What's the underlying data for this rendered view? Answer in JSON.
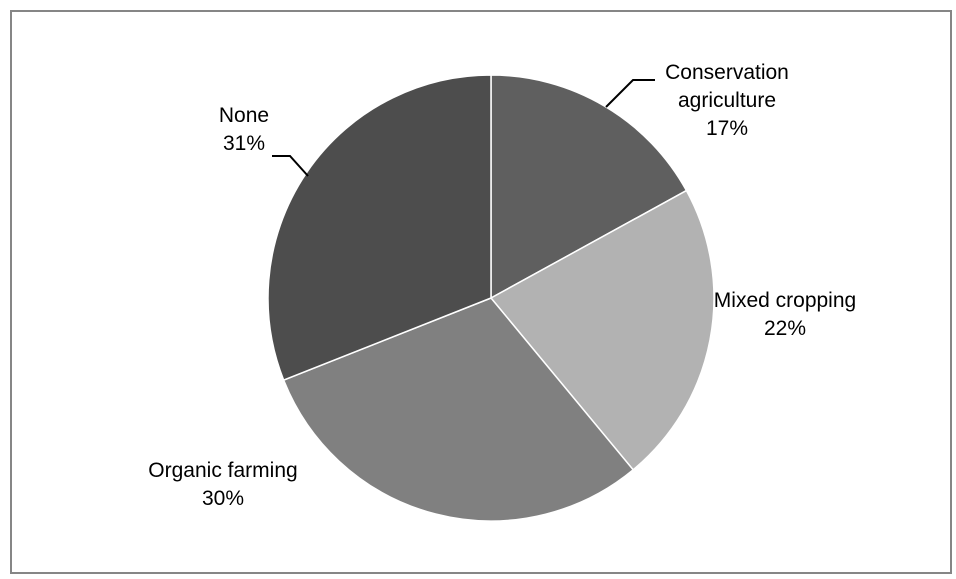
{
  "chart_data": {
    "type": "pie",
    "title": "",
    "legend": "none",
    "slices": [
      {
        "category": "Conservation agriculture",
        "label_lines": [
          "Conservation",
          "agriculture"
        ],
        "value": 17,
        "value_label": "17%",
        "color": "#5f5f5f"
      },
      {
        "category": "Mixed cropping",
        "label_lines": [
          "Mixed cropping"
        ],
        "value": 22,
        "value_label": "22%",
        "color": "#b2b2b2"
      },
      {
        "category": "Organic farming",
        "label_lines": [
          "Organic farming"
        ],
        "value": 30,
        "value_label": "30%",
        "color": "#808080"
      },
      {
        "category": "None",
        "label_lines": [
          "None"
        ],
        "value": 31,
        "value_label": "31%",
        "color": "#4d4d4d"
      }
    ],
    "border_color": "#868686",
    "slice_edge_color": "#ffffff",
    "leader_line_color": "#000000"
  }
}
